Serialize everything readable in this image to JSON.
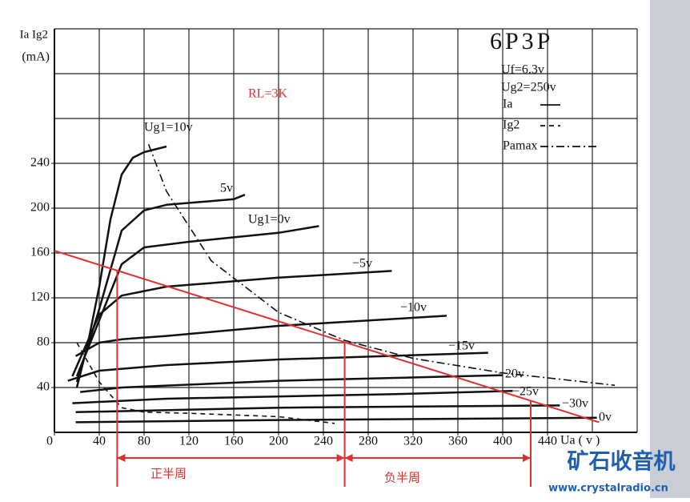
{
  "chart_data": {
    "type": "line",
    "title": "6P3P",
    "subtitle_lines": [
      "Uf=6.3v",
      "Ug2=250v"
    ],
    "legend": [
      {
        "label": "Ia",
        "style": "solid"
      },
      {
        "label": "Ig2",
        "style": "dashed"
      },
      {
        "label": "Pamax",
        "style": "dashdot"
      }
    ],
    "y_label": "Ia Ig2",
    "y_unit": "(mA)",
    "x_label": "Ua ( v )",
    "xlim": [
      0,
      520
    ],
    "ylim": [
      0,
      360
    ],
    "xticks": [
      0,
      40,
      80,
      120,
      160,
      200,
      240,
      280,
      320,
      360,
      400,
      440
    ],
    "yticks": [
      40,
      80,
      120,
      160,
      200,
      240
    ],
    "xgrid": [
      40,
      80,
      120,
      160,
      200,
      240,
      280,
      320,
      360,
      400,
      440,
      480,
      520
    ],
    "ygrid": [
      40,
      80,
      120,
      160,
      200,
      240,
      280,
      320,
      360
    ],
    "series": [
      {
        "name": "Ug1=10v",
        "color": "#111111",
        "x": [
          20,
          30,
          40,
          50,
          60,
          70,
          80,
          100
        ],
        "values": [
          40,
          80,
          130,
          190,
          230,
          245,
          250,
          255
        ]
      },
      {
        "name": "5v",
        "color": "#111111",
        "x": [
          20,
          40,
          60,
          80,
          100,
          160,
          170
        ],
        "values": [
          45,
          110,
          180,
          198,
          203,
          208,
          212
        ]
      },
      {
        "name": "Ug1=0v",
        "color": "#111111",
        "x": [
          20,
          40,
          60,
          80,
          120,
          200,
          236
        ],
        "values": [
          50,
          100,
          150,
          165,
          170,
          178,
          184
        ]
      },
      {
        "name": "−5v",
        "color": "#111111",
        "x": [
          16,
          40,
          60,
          100,
          200,
          301
        ],
        "values": [
          50,
          105,
          122,
          130,
          138,
          144
        ]
      },
      {
        "name": "−10v",
        "color": "#111111",
        "x": [
          19,
          40,
          60,
          100,
          200,
          350
        ],
        "values": [
          68,
          80,
          83,
          86,
          95,
          104
        ]
      },
      {
        "name": "−15v",
        "color": "#111111",
        "x": [
          12,
          40,
          100,
          200,
          387
        ],
        "values": [
          46,
          55,
          60,
          65,
          71
        ]
      },
      {
        "name": "−20v",
        "color": "#111111",
        "x": [
          23,
          60,
          200,
          400
        ],
        "values": [
          36,
          40,
          46,
          51
        ]
      },
      {
        "name": "−25v",
        "color": "#111111",
        "x": [
          16,
          100,
          300,
          409
        ],
        "values": [
          26,
          30,
          34,
          37
        ]
      },
      {
        "name": "−30v",
        "color": "#111111",
        "x": [
          19,
          200,
          451
        ],
        "values": [
          18,
          22,
          24
        ]
      },
      {
        "name": "0v",
        "color": "#111111",
        "x": [
          19,
          200,
          484
        ],
        "values": [
          9,
          11,
          13
        ]
      }
    ],
    "ig2_curve": {
      "x": [
        20,
        40,
        60,
        80,
        120,
        200,
        250
      ],
      "values": [
        80,
        45,
        22,
        18,
        17,
        14,
        8
      ]
    },
    "pamax_curve": {
      "x": [
        84,
        100,
        140,
        200,
        259,
        320,
        400,
        500
      ],
      "values": [
        257,
        215,
        153,
        107,
        82,
        66,
        53,
        42
      ]
    },
    "load_line": {
      "label": "RL=3K",
      "color": "#e03030",
      "x": [
        0,
        486
      ],
      "values": [
        162,
        9
      ]
    },
    "operating_points": {
      "x": [
        56,
        259,
        425
      ],
      "values": [
        144,
        80,
        28
      ]
    },
    "half_cycles": [
      "正半周",
      "负半周"
    ],
    "logo": {
      "title": "矿石收音机",
      "url": "www.crystalradio.cn"
    }
  }
}
